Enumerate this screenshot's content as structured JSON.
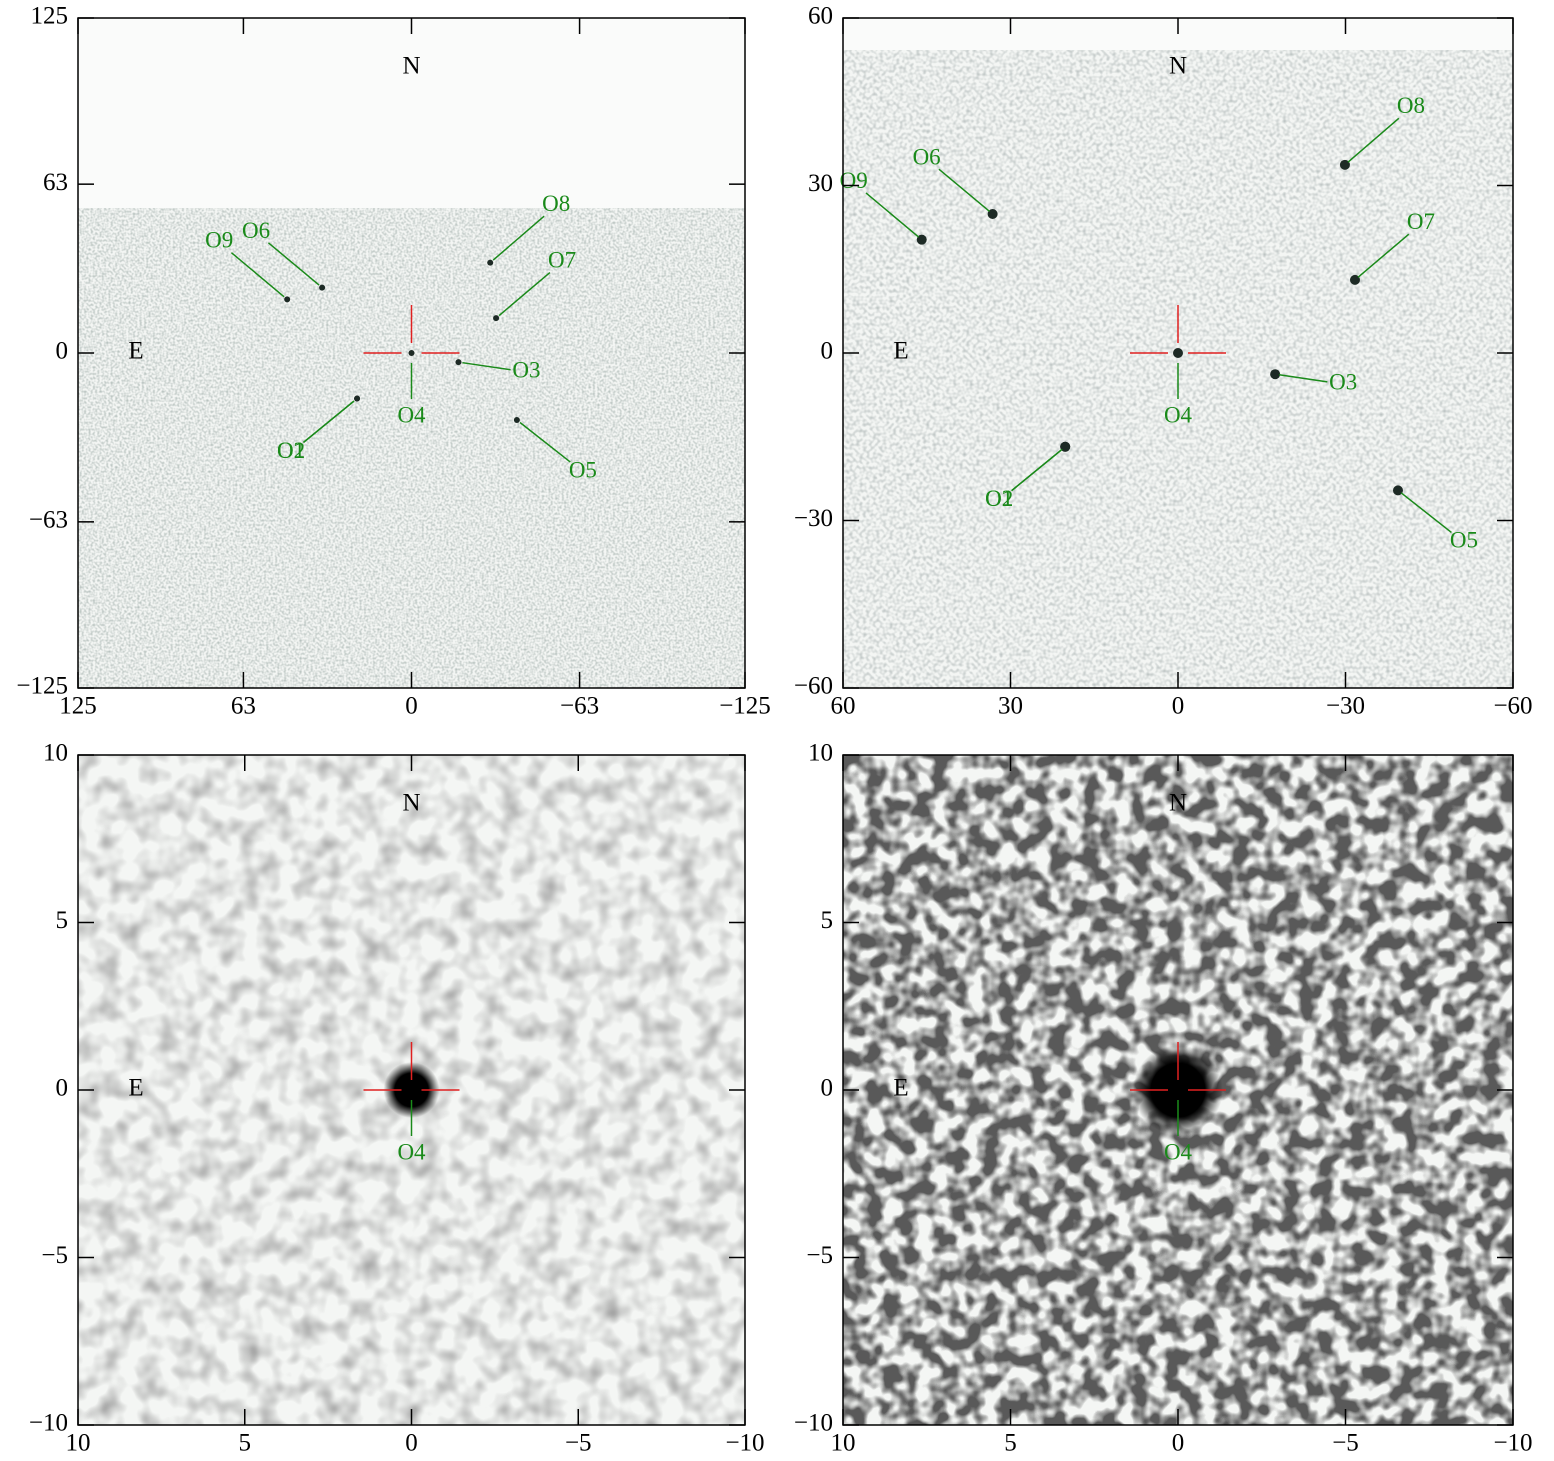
{
  "chart_data": [
    {
      "type": "image",
      "xlim": [
        125,
        -125
      ],
      "ylim": [
        -125,
        125
      ],
      "xticks": [
        125,
        63,
        0,
        {
          "value": -63,
          "label": "−63"
        },
        {
          "value": -125,
          "label": "−125"
        }
      ],
      "yticks": [
        {
          "value": -125,
          "label": "−125"
        },
        {
          "value": -63,
          "label": "−63"
        },
        0,
        63,
        125
      ],
      "annotations": [
        "N",
        "E"
      ],
      "objects": [
        {
          "name": "O1",
          "x": 20.4,
          "y": -17
        },
        {
          "name": "O2",
          "x": 20.4,
          "y": -17
        },
        {
          "name": "O3",
          "x": -17.6,
          "y": -3.4
        },
        {
          "name": "O4",
          "x": 0,
          "y": 0
        },
        {
          "name": "O5",
          "x": -39.5,
          "y": -25
        },
        {
          "name": "O6",
          "x": 33.5,
          "y": 24.4
        },
        {
          "name": "O7",
          "x": -31.7,
          "y": 13
        },
        {
          "name": "O8",
          "x": -29.5,
          "y": 33.7
        },
        {
          "name": "O9",
          "x": 46.6,
          "y": 20
        }
      ]
    },
    {
      "type": "image",
      "xlim": [
        60,
        -60
      ],
      "ylim": [
        -60,
        60
      ],
      "xticks": [
        60,
        30,
        0,
        {
          "value": -30,
          "label": "−30"
        },
        {
          "value": -60,
          "label": "−60"
        }
      ],
      "yticks": [
        {
          "value": -60,
          "label": "−60"
        },
        {
          "value": -30,
          "label": "−30"
        },
        0,
        30,
        60
      ],
      "annotations": [
        "N",
        "E"
      ],
      "objects": [
        {
          "name": "O1",
          "x": 20.2,
          "y": -16.8
        },
        {
          "name": "O2",
          "x": 20.2,
          "y": -16.8
        },
        {
          "name": "O3",
          "x": -17.4,
          "y": -3.8
        },
        {
          "name": "O4",
          "x": 0,
          "y": 0
        },
        {
          "name": "O5",
          "x": -39.4,
          "y": -24.6
        },
        {
          "name": "O6",
          "x": 33.2,
          "y": 24.9
        },
        {
          "name": "O7",
          "x": -31.7,
          "y": 13.1
        },
        {
          "name": "O8",
          "x": -29.9,
          "y": 33.7
        },
        {
          "name": "O9",
          "x": 45.9,
          "y": 20.3
        }
      ]
    },
    {
      "type": "image",
      "xlim": [
        10,
        -10
      ],
      "ylim": [
        -10,
        10
      ],
      "xticks": [
        10,
        5,
        0,
        {
          "value": -5,
          "label": "−5"
        },
        {
          "value": -10,
          "label": "−10"
        }
      ],
      "yticks": [
        {
          "value": -10,
          "label": "−10"
        },
        {
          "value": -5,
          "label": "−5"
        },
        0,
        5,
        10
      ],
      "annotations": [
        "N",
        "E"
      ],
      "objects": [
        {
          "name": "O4",
          "x": 0,
          "y": 0
        }
      ]
    },
    {
      "type": "image",
      "xlim": [
        10,
        -10
      ],
      "ylim": [
        -10,
        10
      ],
      "xticks": [
        10,
        5,
        0,
        {
          "value": -5,
          "label": "−5"
        },
        {
          "value": -10,
          "label": "−10"
        }
      ],
      "yticks": [
        {
          "value": -10,
          "label": "−10"
        },
        {
          "value": -5,
          "label": "−5"
        },
        0,
        5,
        10
      ],
      "annotations": [
        "N",
        "E"
      ],
      "objects": [
        {
          "name": "O4",
          "x": 0,
          "y": 0
        }
      ]
    }
  ]
}
